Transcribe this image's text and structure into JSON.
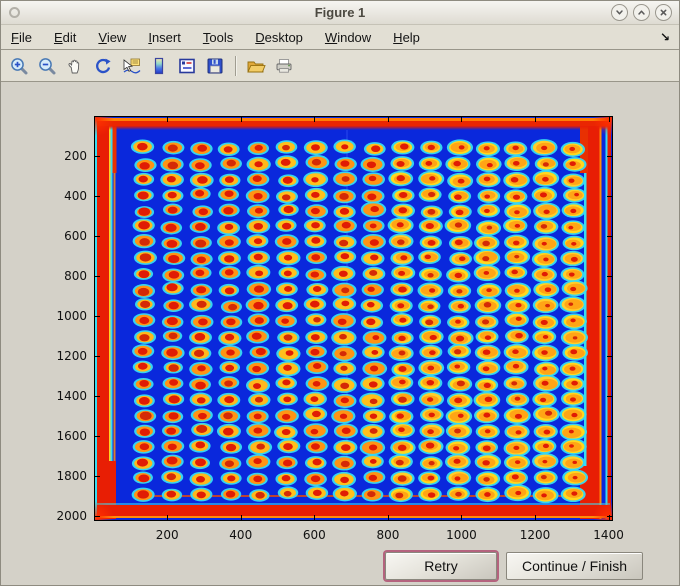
{
  "window": {
    "title": "Figure 1",
    "controls": [
      {
        "name": "shade-window",
        "icon": "chevron-down-icon"
      },
      {
        "name": "maximize-window",
        "icon": "chevron-up-icon"
      },
      {
        "name": "close-window",
        "icon": "close-icon"
      }
    ]
  },
  "menubar": {
    "items": [
      {
        "label": "File"
      },
      {
        "label": "Edit"
      },
      {
        "label": "View"
      },
      {
        "label": "Insert"
      },
      {
        "label": "Tools"
      },
      {
        "label": "Desktop"
      },
      {
        "label": "Window"
      },
      {
        "label": "Help"
      }
    ],
    "dock_arrow": "↘"
  },
  "toolbar": {
    "icons": [
      "zoom-in",
      "zoom-out",
      "pan",
      "rotate-3d",
      "data-cursor",
      "insert-colorbar",
      "insert-legend",
      "save-figure",
      "open-file",
      "print-figure"
    ]
  },
  "figure": {
    "buttons": {
      "retry_label": "Retry",
      "continue_label": "Continue / Finish"
    }
  },
  "chart_data": {
    "type": "heatmap",
    "title": "",
    "description": "Microarray slide scan shown with jet colormap: regular grid of hybridization spots (16 columns x 23 rows) with hot red/orange centers, yellow rings and cyan halos on a deep blue background; saturated red/orange bands along all four slide edges, strongest at the corners.",
    "x_ticks": [
      200,
      400,
      600,
      800,
      1000,
      1200,
      1400
    ],
    "y_ticks": [
      200,
      400,
      600,
      800,
      1000,
      1200,
      1400,
      1600,
      1800,
      2000
    ],
    "x_range": [
      1,
      1412
    ],
    "y_range": [
      1,
      2025
    ],
    "y_axis_direction": "reverse",
    "grid": {
      "rows": 23,
      "cols": 16
    },
    "colormap": "jet",
    "legend": "off",
    "colors": {
      "background": "#0a28dc",
      "halo_cyan": "#38dcf2",
      "ring_yellow": "#ffd81e",
      "ring_orange": "#ff9414",
      "center_red": "#e01c04",
      "edge_red": "#e81e04",
      "edge_orange": "#ff8c0a",
      "axis": "#000000"
    }
  }
}
